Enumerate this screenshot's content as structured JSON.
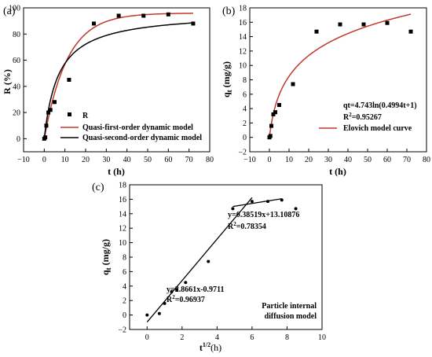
{
  "chart_data": [
    {
      "panel_label": "(a)",
      "type": "line",
      "xlabel": "t (h)",
      "ylabel": "R (%)",
      "xlim": [
        -10,
        80
      ],
      "ylim": [
        -10,
        100
      ],
      "xticks": [
        -10,
        0,
        10,
        20,
        30,
        40,
        50,
        60,
        70,
        80
      ],
      "yticks": [
        0,
        20,
        40,
        60,
        80,
        100
      ],
      "legend_position": "bottom-right",
      "scatter": {
        "name": "R",
        "x": [
          0,
          0.5,
          1,
          2,
          3,
          5,
          12,
          24,
          36,
          48,
          60,
          72
        ],
        "y": [
          0,
          1,
          10,
          20,
          22,
          28,
          45,
          88,
          94,
          94,
          95,
          88
        ]
      },
      "fit_models": [
        {
          "name": "Quasi-first-order dynamic model",
          "kind": "pfo",
          "qe": 96,
          "k": 0.09,
          "color": "#c0392b"
        },
        {
          "name": "Quasi-second-order dynamic model",
          "kind": "pso",
          "qe": 97,
          "k": 0.0015,
          "color": "#000000"
        }
      ]
    },
    {
      "panel_label": "(b)",
      "type": "line",
      "xlabel": "t (h)",
      "ylabel_main": "q",
      "ylabel_sub": "t",
      "ylabel_unit": " (mg/g)",
      "xlim": [
        -10,
        80
      ],
      "ylim": [
        -2,
        18
      ],
      "xticks": [
        -10,
        0,
        10,
        20,
        30,
        40,
        50,
        60,
        70,
        80
      ],
      "yticks": [
        -2,
        0,
        2,
        4,
        6,
        8,
        10,
        12,
        14,
        16,
        18
      ],
      "legend_position": "bottom-right",
      "scatter": {
        "x": [
          0,
          0.5,
          1,
          2,
          3,
          5,
          12,
          24,
          36,
          48,
          60,
          72
        ],
        "y": [
          0,
          0.2,
          1.6,
          3.2,
          3.5,
          4.5,
          7.4,
          14.7,
          15.7,
          15.7,
          15.9,
          14.7
        ]
      },
      "fit_models": [
        {
          "name": "Elovich model curve",
          "kind": "elovich",
          "a": 4.743,
          "b": 0.4994,
          "color": "#c0392b"
        }
      ],
      "annotations": {
        "equation": "qt=4.743ln(0.4994t+1)",
        "r2_prefix": "R",
        "r2_sup": "2",
        "r2_value": "=0.95267"
      }
    },
    {
      "panel_label": "(c)",
      "type": "scatter",
      "xlabel_main": "t",
      "xlabel_sup": "1/2",
      "xlabel_unit": "(h)",
      "ylabel_main": "q",
      "ylabel_sub": "t",
      "ylabel_unit": " (mg/g)",
      "xlim": [
        -1,
        10
      ],
      "ylim": [
        -2,
        18
      ],
      "xticks": [
        0,
        2,
        4,
        6,
        8,
        10
      ],
      "yticks": [
        -2,
        0,
        2,
        4,
        6,
        8,
        10,
        12,
        14,
        16,
        18
      ],
      "scatter": {
        "x": [
          0,
          0.7,
          1,
          1.4,
          1.7,
          2.2,
          3.5,
          4.9,
          6,
          6.9,
          7.7,
          8.5
        ],
        "y": [
          0,
          0.2,
          1.6,
          3.2,
          3.5,
          4.5,
          7.4,
          14.7,
          15.7,
          15.7,
          15.9,
          14.7
        ]
      },
      "fit_lines": [
        {
          "slope": 2.8661,
          "intercept": -0.9711,
          "x_range": [
            0,
            6.0
          ]
        },
        {
          "slope": 0.38519,
          "intercept": 13.10876,
          "x_range": [
            4.9,
            7.7
          ]
        }
      ],
      "annotations": {
        "line1_eq": "y=2.8661x-0.9711",
        "line1_r2_value": "=0.96937",
        "line2_eq": "y=0.38519x+13.10876",
        "line2_r2_value": "=0.78354",
        "r2_prefix": "R",
        "r2_sup": "2",
        "model_label_1": "Particle internal",
        "model_label_2": "diffusion model"
      }
    }
  ]
}
